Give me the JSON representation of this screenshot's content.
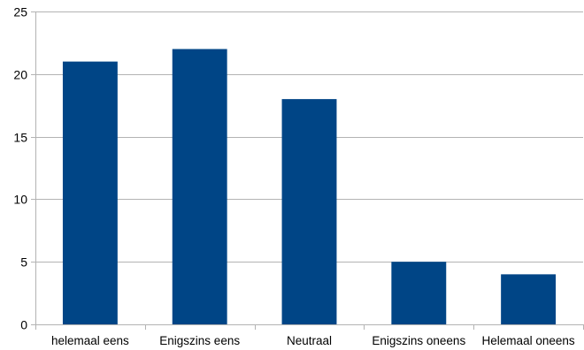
{
  "chart_data": {
    "type": "bar",
    "categories": [
      "helemaal eens",
      "Enigszins eens",
      "Neutraal",
      "Enigszins oneens",
      "Helemaal oneens"
    ],
    "values": [
      21,
      22,
      18,
      5,
      4
    ],
    "title": "",
    "xlabel": "",
    "ylabel": "",
    "ylim": [
      0,
      25
    ],
    "yticks": [
      0,
      5,
      10,
      15,
      20,
      25
    ],
    "grid": true,
    "legend": "none",
    "bar_color": "#004586",
    "grid_color": "#b3b3b3"
  }
}
